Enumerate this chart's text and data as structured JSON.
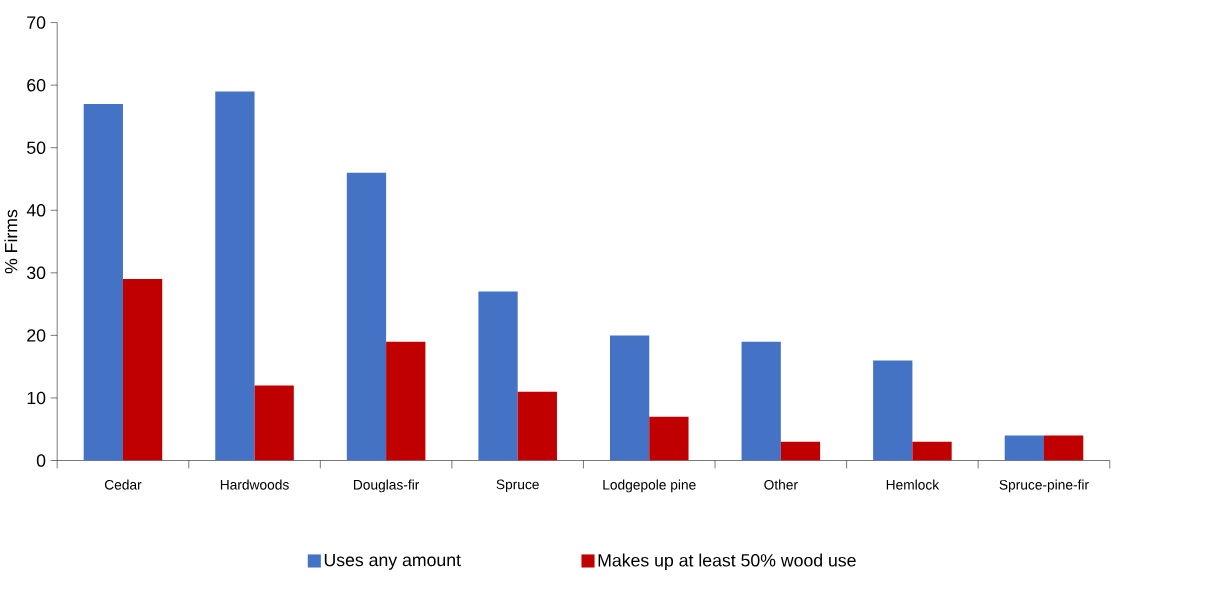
{
  "chart_data": {
    "type": "bar",
    "ylabel": "% Firms",
    "categories": [
      "Cedar",
      "Hardwoods",
      "Douglas-fir",
      "Spruce",
      "Lodgepole pine",
      "Other",
      "Hemlock",
      "Spruce-pine-fir"
    ],
    "series": [
      {
        "name": "Uses any amount",
        "color": "#4472c4",
        "values": [
          57,
          59,
          46,
          27,
          20,
          19,
          16,
          4
        ]
      },
      {
        "name": "Makes up at least 50% wood use",
        "color": "#c00000",
        "values": [
          29,
          12,
          19,
          11,
          7,
          3,
          3,
          4
        ]
      }
    ],
    "ylim": [
      0,
      70
    ],
    "yticks": [
      0,
      10,
      20,
      30,
      40,
      50,
      60,
      70
    ],
    "legend": "bottom",
    "grid": false
  }
}
